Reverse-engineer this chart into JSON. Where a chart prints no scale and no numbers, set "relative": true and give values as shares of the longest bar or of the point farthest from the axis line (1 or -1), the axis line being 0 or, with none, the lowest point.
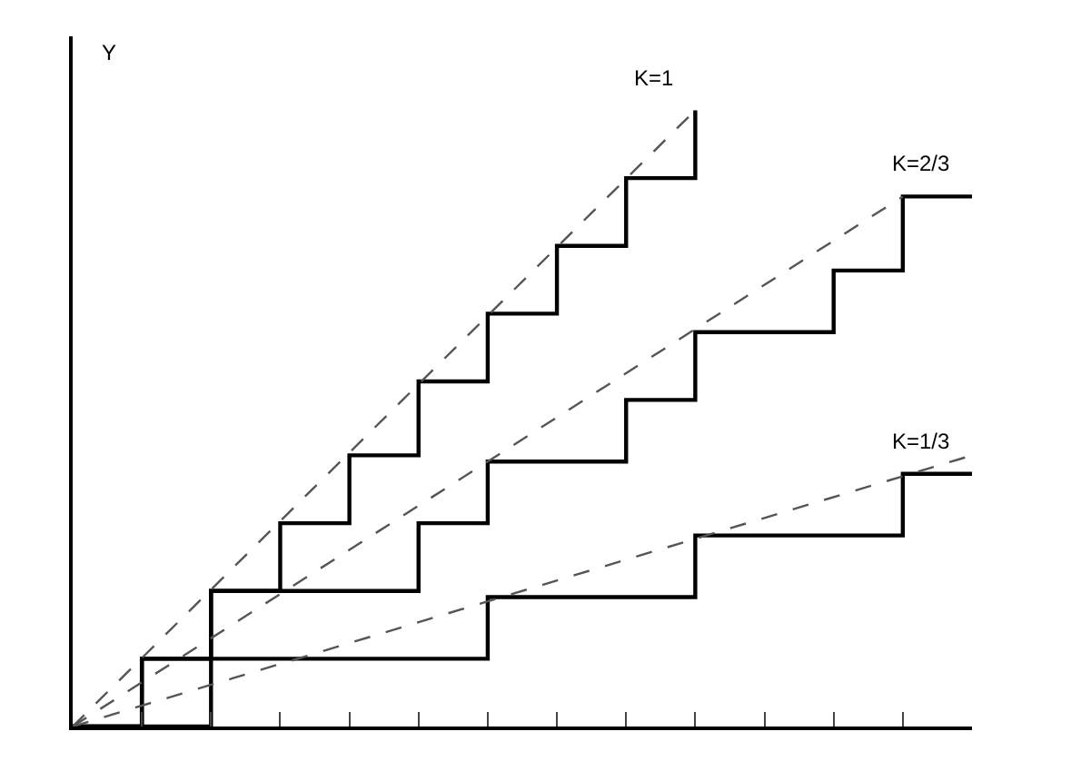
{
  "chart_data": {
    "type": "step",
    "relative": true,
    "ylabel": "Y",
    "categories": [
      null,
      null,
      null,
      null,
      null,
      null,
      null,
      null,
      null,
      null,
      null,
      null,
      null,
      null
    ],
    "series": [
      {
        "name": "K=1",
        "color": "#000000",
        "values": [
          0,
          0.11,
          0.22,
          0.33,
          0.44,
          0.56,
          0.67,
          0.78,
          0.89,
          1,
          null,
          null,
          null,
          null
        ]
      },
      {
        "name": "K=2/3",
        "color": "#000000",
        "values": [
          0,
          0,
          0.22,
          0.22,
          0.22,
          0.33,
          0.43,
          0.43,
          0.53,
          0.64,
          0.64,
          0.74,
          0.86,
          0.86
        ]
      },
      {
        "name": "K=1/3",
        "color": "#000000",
        "values": [
          0,
          0.11,
          0.11,
          0.11,
          0.11,
          0.11,
          0.21,
          0.21,
          0.21,
          0.31,
          0.31,
          0.31,
          0.41,
          0.41
        ]
      },
      {
        "type": "line",
        "line_style": "dashed",
        "color": "#555555",
        "values": [
          0,
          null,
          null,
          null,
          null,
          null,
          null,
          null,
          null,
          1,
          null,
          null,
          null,
          null
        ]
      },
      {
        "type": "line",
        "line_style": "dashed",
        "color": "#555555",
        "values": [
          0,
          null,
          null,
          null,
          null,
          null,
          null,
          null,
          null,
          null,
          null,
          null,
          0.86,
          null
        ]
      },
      {
        "type": "line",
        "line_style": "dashed",
        "color": "#555555",
        "values": [
          0,
          null,
          null,
          null,
          null,
          null,
          null,
          null,
          null,
          null,
          null,
          null,
          null,
          0.44
        ]
      }
    ],
    "grid": false,
    "legend": false,
    "marker": "none"
  }
}
